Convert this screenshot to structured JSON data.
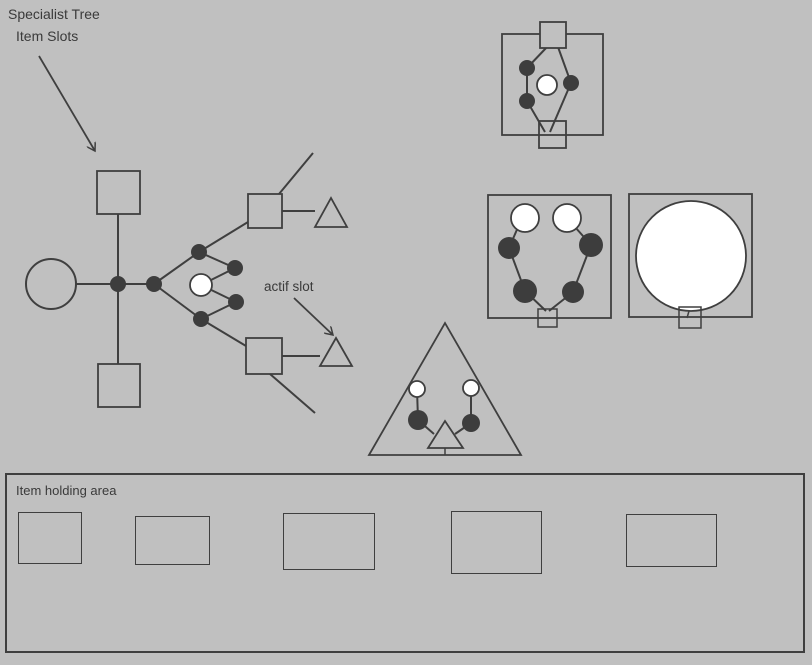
{
  "labels": {
    "specialist_tree_line1": "Specialist Tree",
    "specialist_tree_line2": "Item Slots",
    "actif_slot": "actif slot",
    "item_holding_area": "Item holding area"
  },
  "colors": {
    "background": "#c0c0c0",
    "stroke": "#3f3f3f",
    "dark_node": "#3d3d3d",
    "light_node": "#ffffff"
  }
}
